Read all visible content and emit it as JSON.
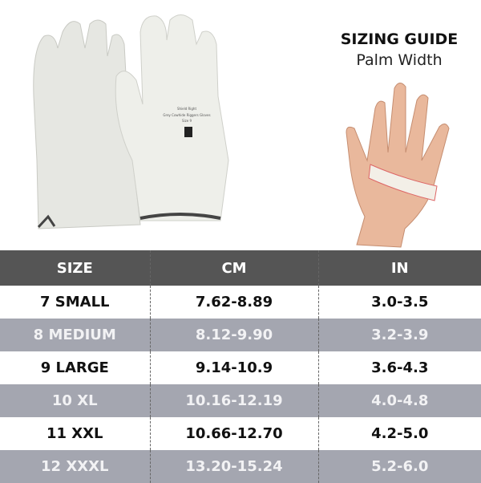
{
  "guide": {
    "title": "SIZING GUIDE",
    "subtitle": "Palm Width"
  },
  "glove_label": {
    "brand": "Shield Right",
    "product": "Grey Cowhide Riggers Gloves",
    "size": "Size 9",
    "logo": "Shield Right"
  },
  "table": {
    "headers": [
      "SIZE",
      "CM",
      "IN"
    ],
    "rows": [
      [
        "7 SMALL",
        "7.62-8.89",
        "3.0-3.5"
      ],
      [
        "8 MEDIUM",
        "8.12-9.90",
        "3.2-3.9"
      ],
      [
        "9 LARGE",
        "9.14-10.9",
        "3.6-4.3"
      ],
      [
        "10 XL",
        "10.16-12.19",
        "4.0-4.8"
      ],
      [
        "11 XXL",
        "10.66-12.70",
        "4.2-5.0"
      ],
      [
        "12 XXXL",
        "13.20-15.24",
        "5.2-6.0"
      ]
    ]
  },
  "colors": {
    "header": "#555555",
    "alt_row": "#a4a6b0"
  }
}
